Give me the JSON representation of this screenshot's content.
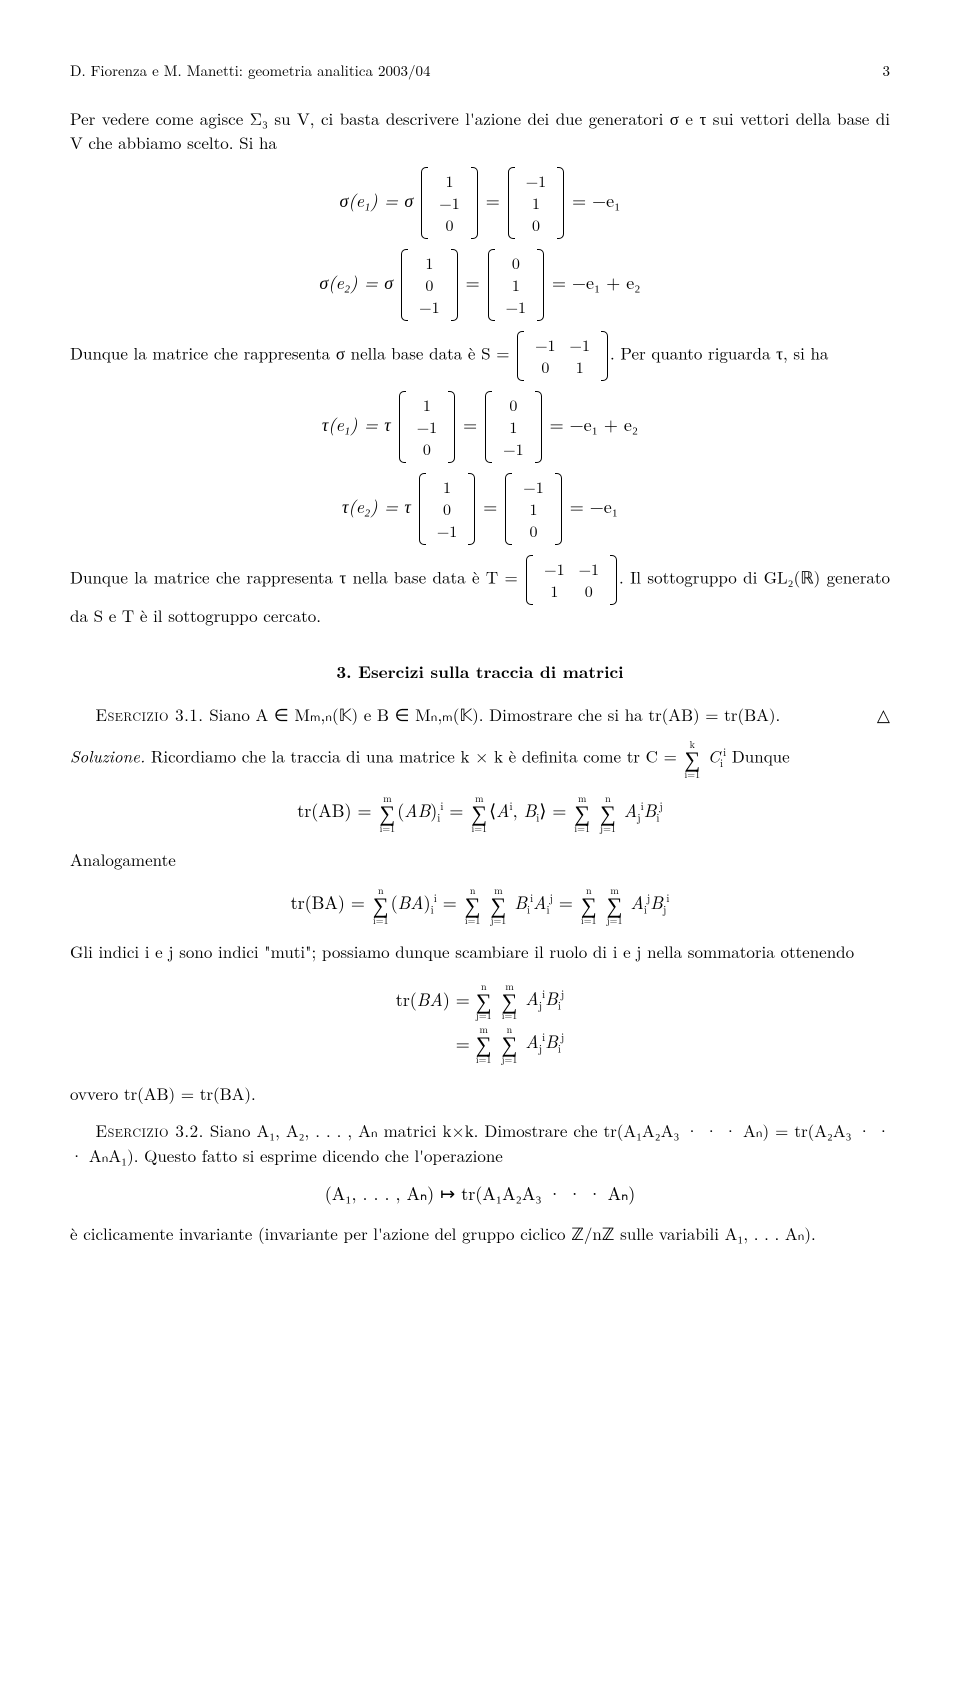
{
  "header": {
    "left": "D. Fiorenza e M. Manetti: geometria analitica 2003/04",
    "pagenum": "3"
  },
  "p1": "Per vedere come agisce Σ₃ su V, ci basta descrivere l'azione dei due generatori σ e τ sui vettori della base di V che abbiamo scelto. Si ha",
  "sigma_e1": {
    "lhs": "σ(e₁) = σ",
    "v1": [
      "1",
      "−1",
      "0"
    ],
    "mid": "=",
    "v2": [
      "−1",
      "1",
      "0"
    ],
    "rhs": "= −e₁"
  },
  "sigma_e2": {
    "lhs": "σ(e₂) = σ",
    "v1": [
      "1",
      "0",
      "−1"
    ],
    "mid": "=",
    "v2": [
      "0",
      "1",
      "−1"
    ],
    "rhs": "= −e₁ + e₂"
  },
  "p2_a": "Dunque la matrice che rappresenta σ nella base data è S =",
  "S": [
    [
      "−1",
      "−1"
    ],
    [
      "0",
      "1"
    ]
  ],
  "p2_b": ". Per quanto riguarda τ, si ha",
  "tau_e1": {
    "lhs": "τ(e₁) = τ",
    "v1": [
      "1",
      "−1",
      "0"
    ],
    "mid": "=",
    "v2": [
      "0",
      "1",
      "−1"
    ],
    "rhs": "= −e₁ + e₂"
  },
  "tau_e2": {
    "lhs": "τ(e₂) = τ",
    "v1": [
      "1",
      "0",
      "−1"
    ],
    "mid": "=",
    "v2": [
      "−1",
      "1",
      "0"
    ],
    "rhs": "= −e₁"
  },
  "p3_a": "Dunque la matrice che rappresenta τ nella base data è T =",
  "T": [
    [
      "−1",
      "−1"
    ],
    [
      "1",
      "0"
    ]
  ],
  "p3_b": ". Il sottogruppo di GL₂(ℝ) generato da S e T è il sottogruppo cercato.",
  "section3": "3. Esercizi sulla traccia di matrici",
  "ex31_lbl": "Esercizio 3.1.",
  "ex31_txt": " Siano A ∈ Mₘ,ₙ(𝕂) e B ∈ Mₙ,ₘ(𝕂). Dimostrare che si ha tr(AB) = tr(BA).",
  "tri": "△",
  "sol_a": "Soluzione.",
  "sol_b": " Ricordiamo che la traccia di una matrice k × k è definita come tr C = ",
  "sol_c": " Dunque",
  "trAB": "tr(AB) =",
  "analogamente": "Analogamente",
  "trBA": "tr(BA) =",
  "p4": "Gli indici i e j sono indici \"muti\"; possiamo dunque scambiare il ruolo di i e j nella sommatoria ottenendo",
  "p5": "ovvero tr(AB) = tr(BA).",
  "ex32_lbl": "Esercizio 3.2.",
  "ex32_txt": " Siano A₁, A₂, . . . , Aₙ matrici k×k. Dimostrare che tr(A₁A₂A₃ · · · Aₙ) = tr(A₂A₃ · · · AₙA₁). Questo fatto si esprime dicendo che l'operazione",
  "ex32_eq": "(A₁, . . . , Aₙ) ↦ tr(A₁A₂A₃ · · · Aₙ)",
  "ex32_end": "è ciclicamente invariante (invariante per l'azione del gruppo ciclico ℤ/nℤ sulle variabili A₁, . . .  Aₙ).",
  "sums": {
    "m": "m",
    "n": "n",
    "i1": "i=1",
    "j1": "j=1",
    "k": "k"
  }
}
